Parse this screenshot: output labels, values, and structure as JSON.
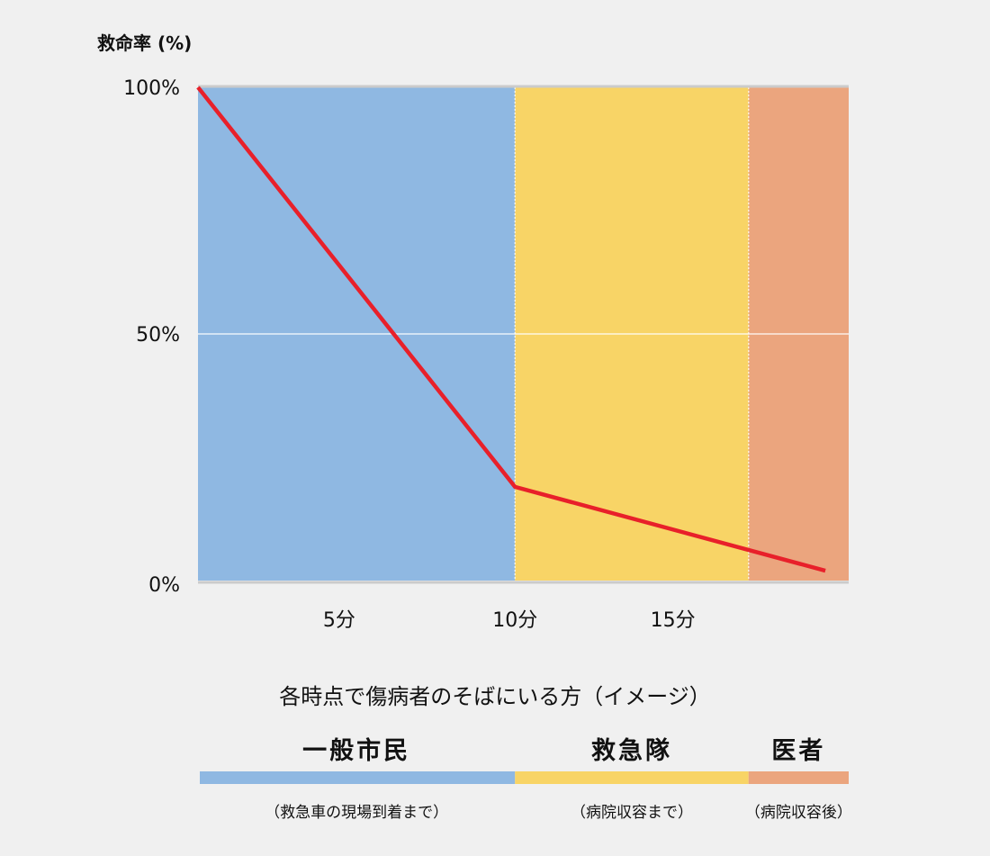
{
  "chart_data": {
    "type": "line",
    "title": "",
    "ylabel": "救命率 (%)",
    "xlabel": "",
    "xlim": [
      0.5,
      20
    ],
    "ylim": [
      0,
      100
    ],
    "yticks": [
      {
        "value": 0,
        "label": "0%"
      },
      {
        "value": 50,
        "label": "50%"
      },
      {
        "value": 100,
        "label": "100%"
      }
    ],
    "xticks": [
      {
        "value": 5,
        "label": "5分"
      },
      {
        "value": 10,
        "label": "10分"
      },
      {
        "value": 15,
        "label": "15分"
      }
    ],
    "grid": "horizontal at 50%",
    "series": [
      {
        "x": [
          0.5,
          10,
          19.3
        ],
        "y": [
          100,
          19,
          2
        ],
        "color": "#e8202a"
      }
    ],
    "regions": [
      {
        "from": 0.5,
        "to": 10,
        "color": "#8fb8e2",
        "name": "一般市民",
        "note": "（救急車の現場到着まで）"
      },
      {
        "from": 10,
        "to": 17,
        "color": "#f8d466",
        "name": "救急隊",
        "note": "（病院収容まで）"
      },
      {
        "from": 17,
        "to": 20,
        "color": "#eba57e",
        "name": "医者",
        "note": "（病院収容後）"
      }
    ],
    "legend_title": "各時点で傷病者のそばにいる方（イメージ）"
  }
}
